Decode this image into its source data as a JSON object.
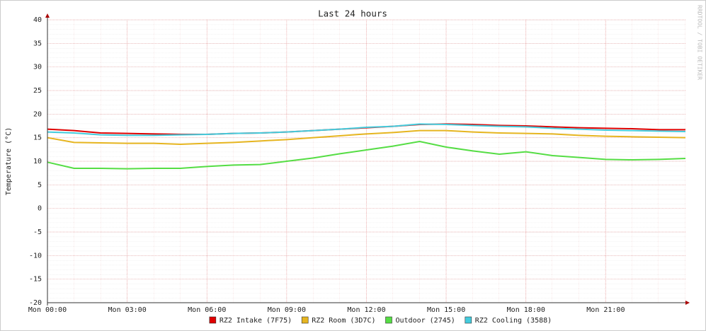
{
  "chart_data": {
    "type": "line",
    "title": "Last 24 hours",
    "y_label": "Temperature (°C)",
    "watermark": "RRDTOOL / TOBI OETIKER",
    "x": [
      0,
      1,
      2,
      3,
      4,
      5,
      6,
      7,
      8,
      9,
      10,
      11,
      12,
      13,
      14,
      15,
      16,
      17,
      18,
      19,
      20,
      21,
      22,
      23,
      24
    ],
    "xlim": [
      0,
      24
    ],
    "xticks": [
      {
        "value": 0,
        "label": "Mon 00:00"
      },
      {
        "value": 3,
        "label": "Mon 03:00"
      },
      {
        "value": 6,
        "label": "Mon 06:00"
      },
      {
        "value": 9,
        "label": "Mon 09:00"
      },
      {
        "value": 12,
        "label": "Mon 12:00"
      },
      {
        "value": 15,
        "label": "Mon 15:00"
      },
      {
        "value": 18,
        "label": "Mon 18:00"
      },
      {
        "value": 21,
        "label": "Mon 21:00"
      }
    ],
    "ylim": [
      -20,
      40
    ],
    "yticks": [
      -20,
      -15,
      -10,
      -5,
      0,
      5,
      10,
      15,
      20,
      25,
      30,
      35,
      40
    ],
    "grid": true,
    "legend": "bottom",
    "series": [
      {
        "name": "RZ2 Intake (7F75)",
        "color": "#e00000",
        "values": [
          16.8,
          16.5,
          16.0,
          15.9,
          15.8,
          15.7,
          15.7,
          15.9,
          16.0,
          16.2,
          16.5,
          16.8,
          17.1,
          17.4,
          17.8,
          17.9,
          17.8,
          17.6,
          17.5,
          17.3,
          17.1,
          17.0,
          16.9,
          16.7,
          16.7
        ]
      },
      {
        "name": "RZ2 Room (3D7C)",
        "color": "#e6b520",
        "values": [
          15.0,
          14.0,
          13.9,
          13.8,
          13.8,
          13.6,
          13.8,
          14.0,
          14.3,
          14.6,
          15.0,
          15.4,
          15.8,
          16.1,
          16.5,
          16.5,
          16.2,
          16.0,
          15.9,
          15.8,
          15.5,
          15.3,
          15.2,
          15.1,
          15.0
        ]
      },
      {
        "name": "Outdoor (2745)",
        "color": "#55dd44",
        "values": [
          9.8,
          8.5,
          8.5,
          8.4,
          8.5,
          8.5,
          8.9,
          9.2,
          9.3,
          10.0,
          10.7,
          11.6,
          12.4,
          13.2,
          14.2,
          13.0,
          12.2,
          11.5,
          12.0,
          11.2,
          10.8,
          10.4,
          10.3,
          10.4,
          10.6
        ]
      },
      {
        "name": "RZ2 Cooling (3588)",
        "color": "#44ccdd",
        "values": [
          16.2,
          16.0,
          15.6,
          15.5,
          15.5,
          15.6,
          15.7,
          15.9,
          16.0,
          16.2,
          16.5,
          16.8,
          17.2,
          17.4,
          17.9,
          17.8,
          17.6,
          17.4,
          17.3,
          17.0,
          16.8,
          16.6,
          16.5,
          16.4,
          16.3
        ]
      }
    ]
  }
}
